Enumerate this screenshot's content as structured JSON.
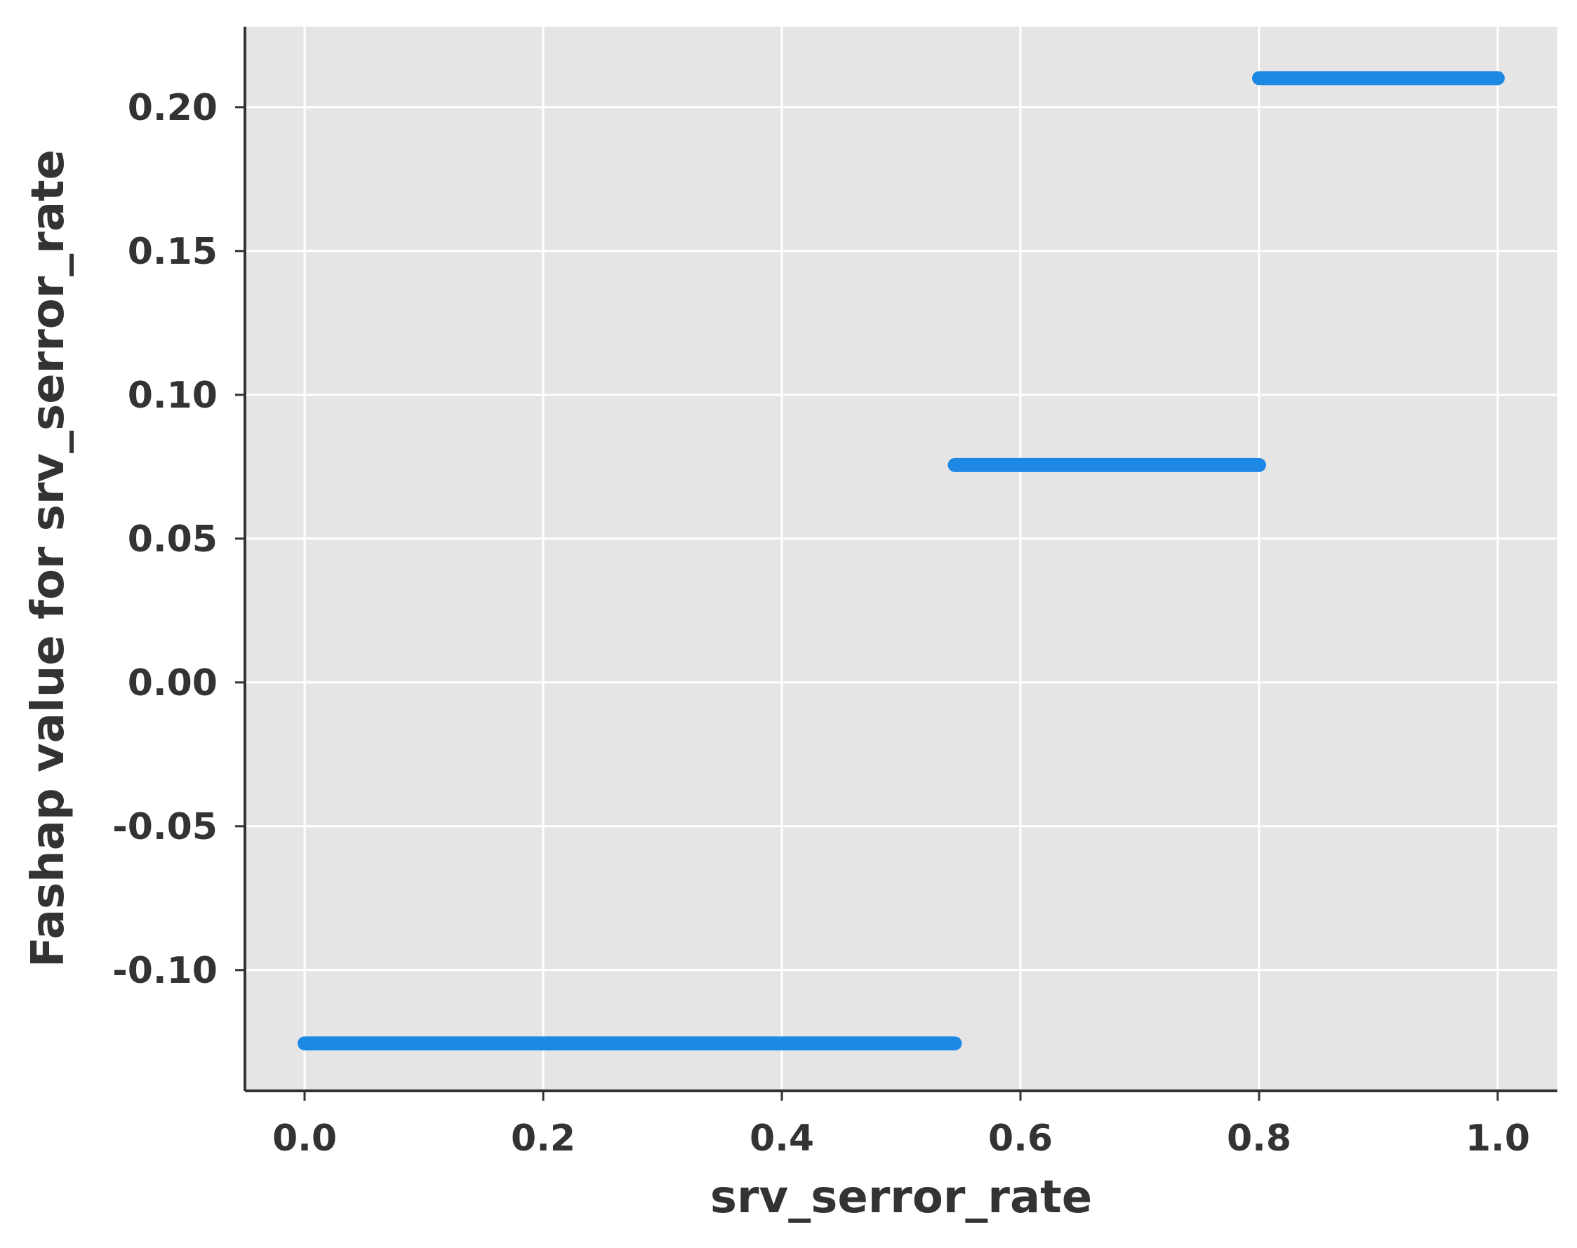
{
  "chart_data": {
    "type": "scatter",
    "title": "",
    "xlabel": "srv_serror_rate",
    "ylabel": "Fashap value for srv_serror_rate",
    "xlim": [
      -0.05,
      1.05
    ],
    "ylim": [
      -0.142,
      0.228
    ],
    "x_ticks": [
      0.0,
      0.2,
      0.4,
      0.6,
      0.8,
      1.0
    ],
    "x_tick_labels": [
      "0.0",
      "0.2",
      "0.4",
      "0.6",
      "0.8",
      "1.0"
    ],
    "y_ticks": [
      -0.1,
      -0.05,
      0.0,
      0.05,
      0.1,
      0.15,
      0.2
    ],
    "y_tick_labels": [
      "-0.10",
      "-0.05",
      "0.00",
      "0.05",
      "0.10",
      "0.15",
      "0.20"
    ],
    "grid": true,
    "point_color": "#1e88e5",
    "background_color": "#e5e5e5",
    "segments": [
      {
        "x_start": 0.0,
        "x_end": 0.545,
        "y": -0.1255
      },
      {
        "x_start": 0.545,
        "x_end": 0.8,
        "y": 0.0756
      },
      {
        "x_start": 0.8,
        "x_end": 1.0,
        "y": 0.2101
      }
    ]
  }
}
